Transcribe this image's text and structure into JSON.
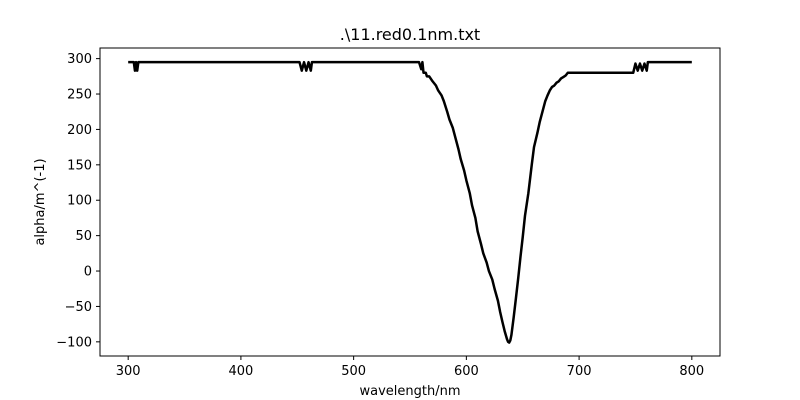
{
  "chart_data": {
    "type": "line",
    "title": ".\\11.red0.1nm.txt",
    "xlabel": "wavelength/nm",
    "ylabel": "alpha/m^(-1)",
    "xlim": [
      275,
      825
    ],
    "ylim": [
      -120,
      315
    ],
    "xticks": [
      300,
      400,
      500,
      600,
      700,
      800
    ],
    "yticks": [
      -100,
      -50,
      0,
      50,
      100,
      150,
      200,
      250,
      300
    ],
    "xtick_labels": [
      "300",
      "400",
      "500",
      "600",
      "700",
      "800"
    ],
    "ytick_labels": [
      "−100",
      "−50",
      "0",
      "50",
      "100",
      "150",
      "200",
      "250",
      "300"
    ],
    "grid": false,
    "legend": "none",
    "line_color": "#000000",
    "series": [
      {
        "x": [
          300,
          305,
          306,
          307,
          308,
          309,
          310,
          350,
          400,
          450,
          452,
          454,
          456,
          458,
          460,
          462,
          463,
          500,
          550,
          558,
          560,
          561,
          562,
          564,
          565,
          567,
          570,
          573,
          575,
          578,
          580,
          583,
          585,
          588,
          590,
          593,
          595,
          598,
          600,
          603,
          605,
          608,
          610,
          613,
          615,
          618,
          620,
          623,
          625,
          628,
          630,
          632,
          634,
          636,
          637,
          638,
          639,
          640,
          642,
          644,
          646,
          648,
          650,
          652,
          655,
          658,
          660,
          663,
          665,
          668,
          670,
          672,
          674,
          676,
          678,
          680,
          682,
          684,
          686,
          688,
          690,
          700,
          720,
          740,
          748,
          750,
          752,
          754,
          756,
          758,
          760,
          761,
          780,
          800
        ],
        "y": [
          295,
          295,
          283,
          295,
          283,
          295,
          295,
          295,
          295,
          295,
          295,
          283,
          295,
          283,
          295,
          283,
          295,
          295,
          295,
          295,
          285,
          295,
          280,
          280,
          275,
          275,
          268,
          262,
          255,
          248,
          240,
          225,
          214,
          202,
          190,
          172,
          158,
          142,
          128,
          110,
          93,
          75,
          56,
          38,
          25,
          12,
          0,
          -12,
          -25,
          -42,
          -58,
          -72,
          -85,
          -96,
          -100,
          -101,
          -98,
          -90,
          -65,
          -38,
          -10,
          20,
          48,
          78,
          110,
          150,
          175,
          195,
          210,
          228,
          240,
          248,
          255,
          260,
          262,
          266,
          268,
          272,
          274,
          276,
          280,
          280,
          280,
          280,
          280,
          293,
          283,
          293,
          283,
          293,
          283,
          295,
          295,
          295
        ]
      }
    ]
  }
}
